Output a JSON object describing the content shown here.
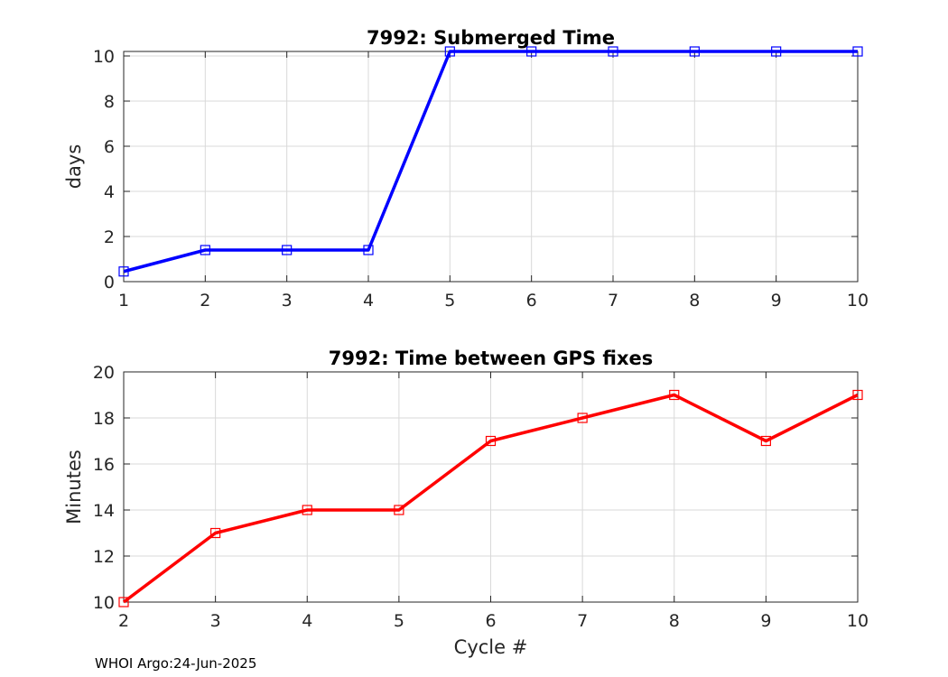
{
  "chart_data": [
    {
      "type": "line",
      "title": "7992: Submerged Time",
      "xlabel": "",
      "ylabel": "days",
      "xlim": [
        1,
        10
      ],
      "ylim": [
        0,
        10.2
      ],
      "xticks": [
        1,
        2,
        3,
        4,
        5,
        6,
        7,
        8,
        9,
        10
      ],
      "yticks": [
        0,
        2,
        4,
        6,
        8,
        10
      ],
      "grid": true,
      "marker": "square",
      "color": "#0000ff",
      "series": [
        {
          "x": [
            1,
            2,
            3,
            4,
            5,
            6,
            7,
            8,
            9,
            10
          ],
          "values": [
            0.45,
            1.4,
            1.4,
            1.4,
            10.2,
            10.2,
            10.2,
            10.2,
            10.2,
            10.2
          ]
        }
      ]
    },
    {
      "type": "line",
      "title": "7992: Time between GPS fixes",
      "xlabel": "Cycle #",
      "ylabel": "Minutes",
      "xlim": [
        2,
        10
      ],
      "ylim": [
        10,
        20
      ],
      "xticks": [
        2,
        3,
        4,
        5,
        6,
        7,
        8,
        9,
        10
      ],
      "yticks": [
        10,
        12,
        14,
        16,
        18,
        20
      ],
      "grid": true,
      "marker": "square",
      "color": "#ff0000",
      "series": [
        {
          "x": [
            2,
            3,
            4,
            5,
            6,
            7,
            8,
            9,
            10
          ],
          "values": [
            10,
            13,
            14,
            14,
            17,
            18,
            19,
            17,
            19
          ]
        }
      ]
    }
  ],
  "footer": "WHOI Argo:24-Jun-2025"
}
